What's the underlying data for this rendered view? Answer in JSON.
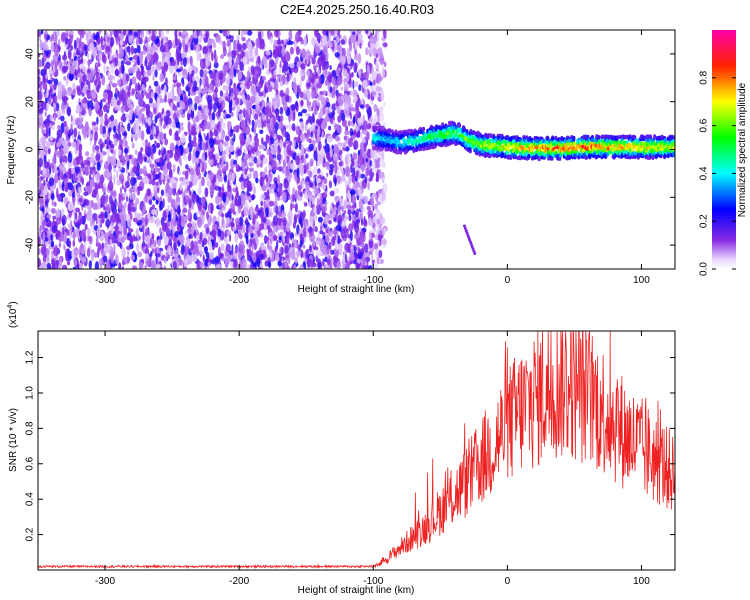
{
  "title": "C2E4.2025.250.16.40.R03",
  "chart_data": [
    {
      "type": "heatmap",
      "name": "spectrogram",
      "xlabel": "Height of straight line (km)",
      "ylabel": "Frequency (Hz)",
      "xlim": [
        -350,
        125
      ],
      "ylim": [
        -50,
        50
      ],
      "xticks": [
        -300,
        -200,
        -100,
        0,
        100
      ],
      "xtick_labels": [
        "-300",
        "-200",
        "-100",
        "0",
        "100"
      ],
      "yticks": [
        -40,
        -20,
        0,
        20,
        40
      ],
      "ytick_labels": [
        "-40",
        "-20",
        "0",
        "20",
        "40"
      ],
      "noise_region": {
        "x_from": -350,
        "x_to": -97,
        "y_from": -50,
        "y_to": 50
      },
      "signal_ridge": {
        "x": [
          -100,
          -90,
          -80,
          -70,
          -60,
          -50,
          -40,
          -35,
          -30,
          -20,
          -10,
          0,
          20,
          40,
          60,
          80,
          100,
          125
        ],
        "y": [
          5,
          4,
          3,
          3.5,
          5,
          6,
          7,
          6,
          4,
          2,
          1.5,
          1,
          0.5,
          0.5,
          1,
          1,
          1,
          1
        ],
        "amplitude": [
          0.45,
          0.4,
          0.45,
          0.5,
          0.55,
          0.6,
          0.65,
          0.6,
          0.65,
          0.7,
          0.75,
          0.8,
          0.85,
          0.9,
          0.9,
          0.85,
          0.8,
          0.75
        ]
      },
      "artifact": {
        "x": [
          -32,
          -24
        ],
        "y": [
          -32,
          -44
        ]
      },
      "colorbar": {
        "label": "Normalized spectral amplitude",
        "range": [
          0,
          1
        ],
        "ticks": [
          0.0,
          0.2,
          0.4,
          0.6,
          0.8
        ],
        "tick_labels": [
          "0.0",
          "0.2",
          "0.4",
          "0.6",
          "0.8"
        ]
      }
    },
    {
      "type": "line",
      "name": "snr",
      "xlabel": "Height of straight line (km)",
      "ylabel": "SNR (10 * v/v)",
      "y_multiplier": "(x10",
      "y_exponent": "4",
      "y_multiplier_close": ")",
      "xlim": [
        -350,
        125
      ],
      "ylim": [
        0,
        1.35
      ],
      "xticks": [
        -300,
        -200,
        -100,
        0,
        100
      ],
      "xtick_labels": [
        "-300",
        "-200",
        "-100",
        "0",
        "100"
      ],
      "yticks": [
        0.2,
        0.4,
        0.6,
        0.8,
        1.0,
        1.2
      ],
      "ytick_labels": [
        "0.2",
        "0.4",
        "0.6",
        "0.8",
        "1.0",
        "1.2"
      ],
      "color": "#ee2222",
      "envelope": {
        "x": [
          -350,
          -100,
          -97,
          -90,
          -80,
          -70,
          -60,
          -50,
          -40,
          -30,
          -20,
          -10,
          0,
          10,
          20,
          30,
          40,
          50,
          60,
          70,
          80,
          90,
          100,
          110,
          120,
          125
        ],
        "y": [
          0.02,
          0.02,
          0.03,
          0.06,
          0.12,
          0.18,
          0.24,
          0.32,
          0.4,
          0.48,
          0.58,
          0.68,
          0.78,
          0.86,
          0.92,
          0.98,
          1.02,
          1.0,
          0.95,
          0.88,
          0.8,
          0.72,
          0.66,
          0.6,
          0.55,
          0.5
        ]
      }
    }
  ]
}
